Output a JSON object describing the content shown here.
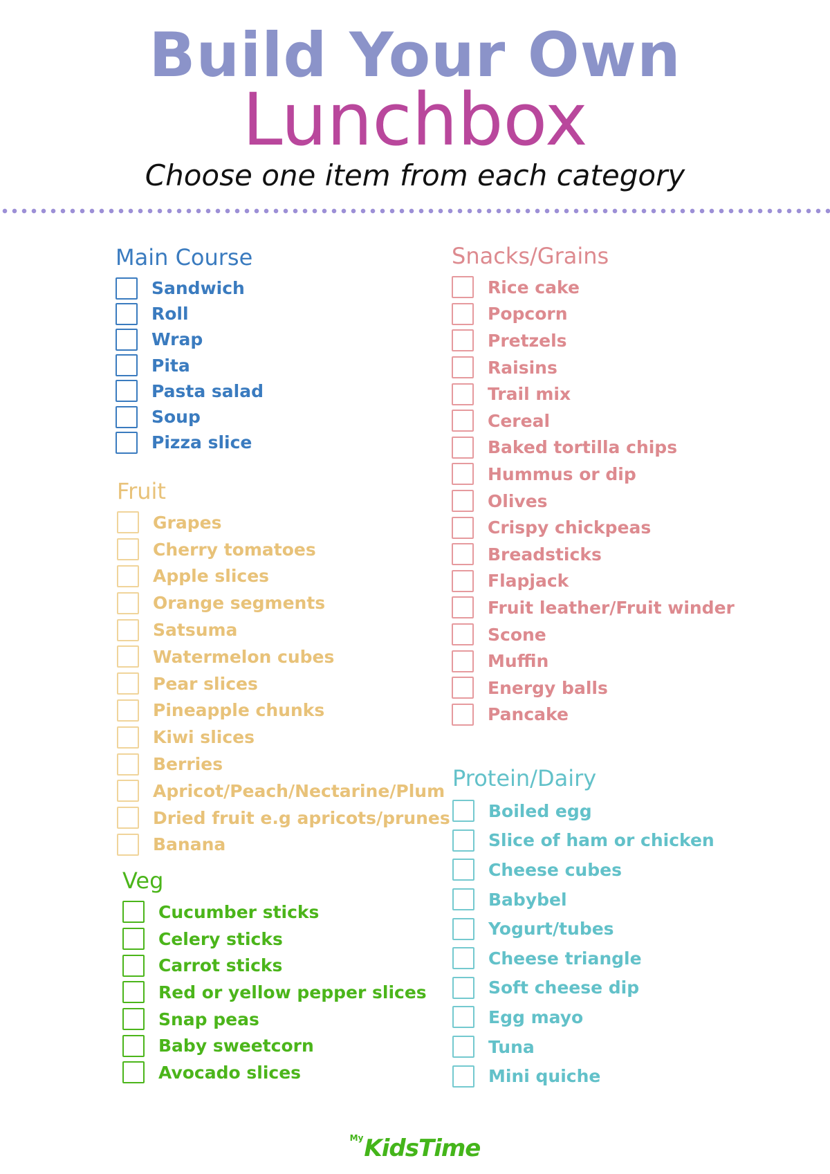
{
  "header": {
    "title_line1": "Build Your Own",
    "title_line2": "Lunchbox",
    "subtitle": "Choose one item from each category"
  },
  "colors": {
    "main_course": "#3a7bbf",
    "fruit": "#e8c279",
    "veg": "#4bb51a",
    "snacks_grains": "#dd8a8f",
    "protein_dairy": "#62c1c9"
  },
  "sections": {
    "main_course": {
      "title": "Main Course",
      "items": [
        "Sandwich",
        "Roll",
        "Wrap",
        "Pita",
        "Pasta salad",
        "Soup",
        "Pizza slice"
      ]
    },
    "fruit": {
      "title": "Fruit",
      "items": [
        "Grapes",
        "Cherry tomatoes",
        "Apple slices",
        "Orange segments",
        "Satsuma",
        "Watermelon cubes",
        "Pear slices",
        "Pineapple chunks",
        "Kiwi slices",
        "Berries",
        "Apricot/Peach/Nectarine/Plum",
        "Dried fruit e.g apricots/prunes",
        "Banana"
      ]
    },
    "veg": {
      "title": "Veg",
      "items": [
        "Cucumber sticks",
        "Celery sticks",
        "Carrot sticks",
        "Red or yellow pepper slices",
        "Snap peas",
        "Baby sweetcorn",
        "Avocado slices"
      ]
    },
    "snacks_grains": {
      "title": "Snacks/Grains",
      "items": [
        "Rice cake",
        "Popcorn",
        "Pretzels",
        "Raisins",
        "Trail mix",
        "Cereal",
        "Baked tortilla chips",
        "Hummus or dip",
        "Olives",
        "Crispy chickpeas",
        "Breadsticks",
        "Flapjack",
        "Fruit leather/Fruit winder",
        "Scone",
        "Muffin",
        "Energy balls",
        "Pancake"
      ]
    },
    "protein_dairy": {
      "title": "Protein/Dairy",
      "items": [
        "Boiled egg",
        "Slice of ham or chicken",
        "Cheese cubes",
        "Babybel",
        "Yogurt/tubes",
        "Cheese triangle",
        "Soft cheese dip",
        "Egg mayo",
        "Tuna",
        "Mini quiche"
      ]
    }
  },
  "footer": {
    "logo_prefix": "My",
    "logo_brand": "KidsTime"
  }
}
